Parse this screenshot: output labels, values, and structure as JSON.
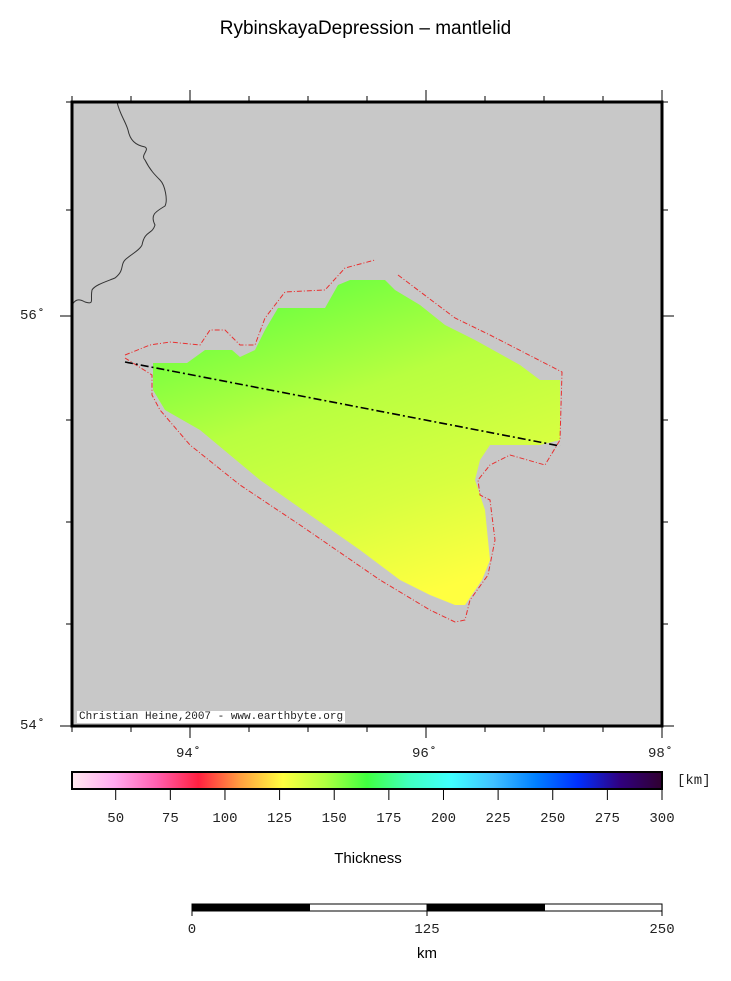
{
  "title": "RybinskayaDepression – mantlelid",
  "attribution": "Christian Heine,2007 - www.earthbyte.org",
  "map": {
    "lon_labels": [
      "94˚",
      "96˚",
      "98˚"
    ],
    "lat_labels": [
      "56˚",
      "54˚"
    ],
    "background": "#c8c8c8",
    "outline_color": "#e83030"
  },
  "colorbar": {
    "unit": "[km]",
    "ticks": [
      "50",
      "75",
      "100",
      "125",
      "150",
      "175",
      "200",
      "225",
      "250",
      "275",
      "300"
    ],
    "range": [
      30,
      300
    ],
    "label": "Thickness",
    "colors": [
      "#ffe8ee",
      "#ffaaf0",
      "#ff60b0",
      "#ff2040",
      "#ffa040",
      "#ffff40",
      "#b0ff40",
      "#40ff40",
      "#40ffc0",
      "#40ffff",
      "#40c0ff",
      "#0080ff",
      "#0030ff",
      "#300080",
      "#300030"
    ]
  },
  "scalebar": {
    "labels": [
      "0",
      "125",
      "250"
    ],
    "unit": "km"
  }
}
